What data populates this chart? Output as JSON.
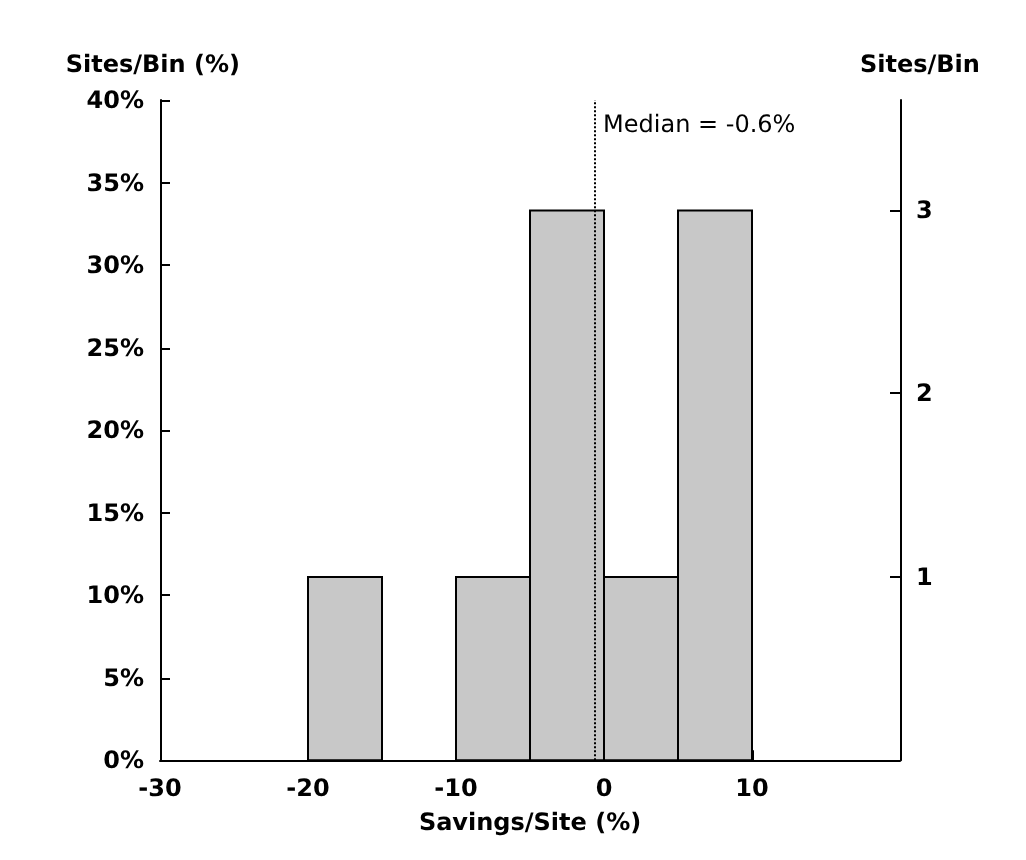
{
  "chart_data": {
    "type": "histogram",
    "xlabel": "Savings/Site (%)",
    "ylabel": "Sites/Bin (%)",
    "y2label": "Sites/Bin",
    "bins": [
      -20,
      -15,
      -10,
      -5,
      0,
      5,
      10
    ],
    "values": [
      11.1,
      0,
      11.1,
      33.3,
      11.1,
      33.3
    ],
    "color": "#c8c8c8",
    "xlim": [
      -30,
      20
    ],
    "xticks": [
      -30,
      -20,
      -10,
      0,
      10
    ],
    "ylim": [
      0,
      40
    ],
    "yticks": [
      {
        "value": 0,
        "label": "0%"
      },
      {
        "value": 5,
        "label": "5%"
      },
      {
        "value": 10,
        "label": "10%"
      },
      {
        "value": 15,
        "label": "15%"
      },
      {
        "value": 20,
        "label": "20%"
      },
      {
        "value": 25,
        "label": "25%"
      },
      {
        "value": 30,
        "label": "30%"
      },
      {
        "value": 35,
        "label": "35%"
      },
      {
        "value": 40,
        "label": "40%"
      }
    ],
    "y2lim": [
      0,
      3.6
    ],
    "y2ticks": [
      1,
      2,
      3
    ],
    "ref_lines": [
      {
        "axis": "x",
        "value": -0.6,
        "label": "Median = -0.6%",
        "line_style": "dotted"
      }
    ],
    "grid": false
  }
}
